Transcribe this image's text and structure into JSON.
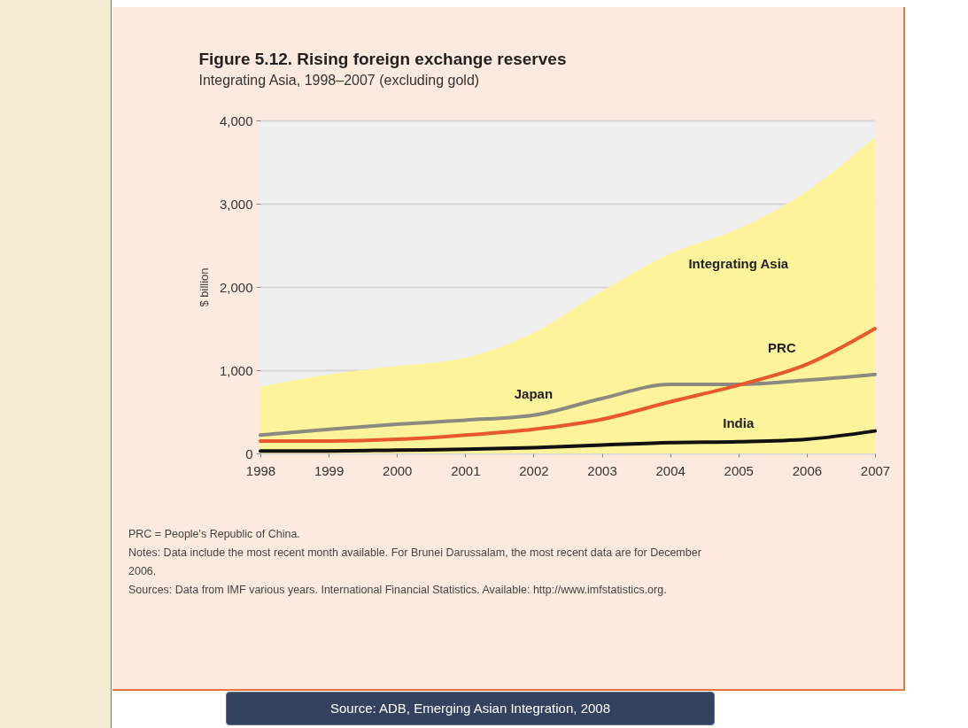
{
  "chart_data": {
    "type": "line",
    "title": "Figure 5.12. Rising foreign exchange reserves",
    "subtitle": "Integrating Asia, 1998–2007 (excluding gold)",
    "ylabel": "$ billion",
    "categories": [
      "1998",
      "1999",
      "2000",
      "2001",
      "2002",
      "2003",
      "2004",
      "2005",
      "2006",
      "2007"
    ],
    "series": [
      {
        "name": "Integrating Asia",
        "type": "area",
        "color": "#fdf39a",
        "values": [
          800,
          950,
          1050,
          1150,
          1450,
          1950,
          2400,
          2700,
          3150,
          3800
        ]
      },
      {
        "name": "Japan",
        "color": "#8a8a80",
        "values": [
          220,
          290,
          350,
          400,
          460,
          660,
          830,
          830,
          880,
          950
        ]
      },
      {
        "name": "PRC",
        "color": "#e8582a",
        "values": [
          150,
          150,
          170,
          220,
          290,
          410,
          620,
          820,
          1070,
          1500
        ]
      },
      {
        "name": "India",
        "color": "#111111",
        "values": [
          30,
          30,
          40,
          50,
          70,
          100,
          130,
          140,
          170,
          270
        ]
      }
    ],
    "ylim": [
      0,
      4000
    ],
    "yticks": [
      {
        "value": 0,
        "label": "0"
      },
      {
        "value": 1000,
        "label": "1,000"
      },
      {
        "value": 2000,
        "label": "2,000"
      },
      {
        "value": 3000,
        "label": "3,000"
      },
      {
        "value": 4000,
        "label": "4,000"
      }
    ],
    "grid": "y",
    "line_style": "solid",
    "marker": "none",
    "annotations": [
      "PRC = People's Republic of China.",
      "Notes: Data include the most recent month available. For Brunei Darussalam, the most recent data are for December 2006.",
      "Sources: Data from IMF various years. International Financial Statistics. Available: http://www.imfstatistics.org.",
      "Source: ADB, Emerging Asian Integration, 2008"
    ]
  }
}
